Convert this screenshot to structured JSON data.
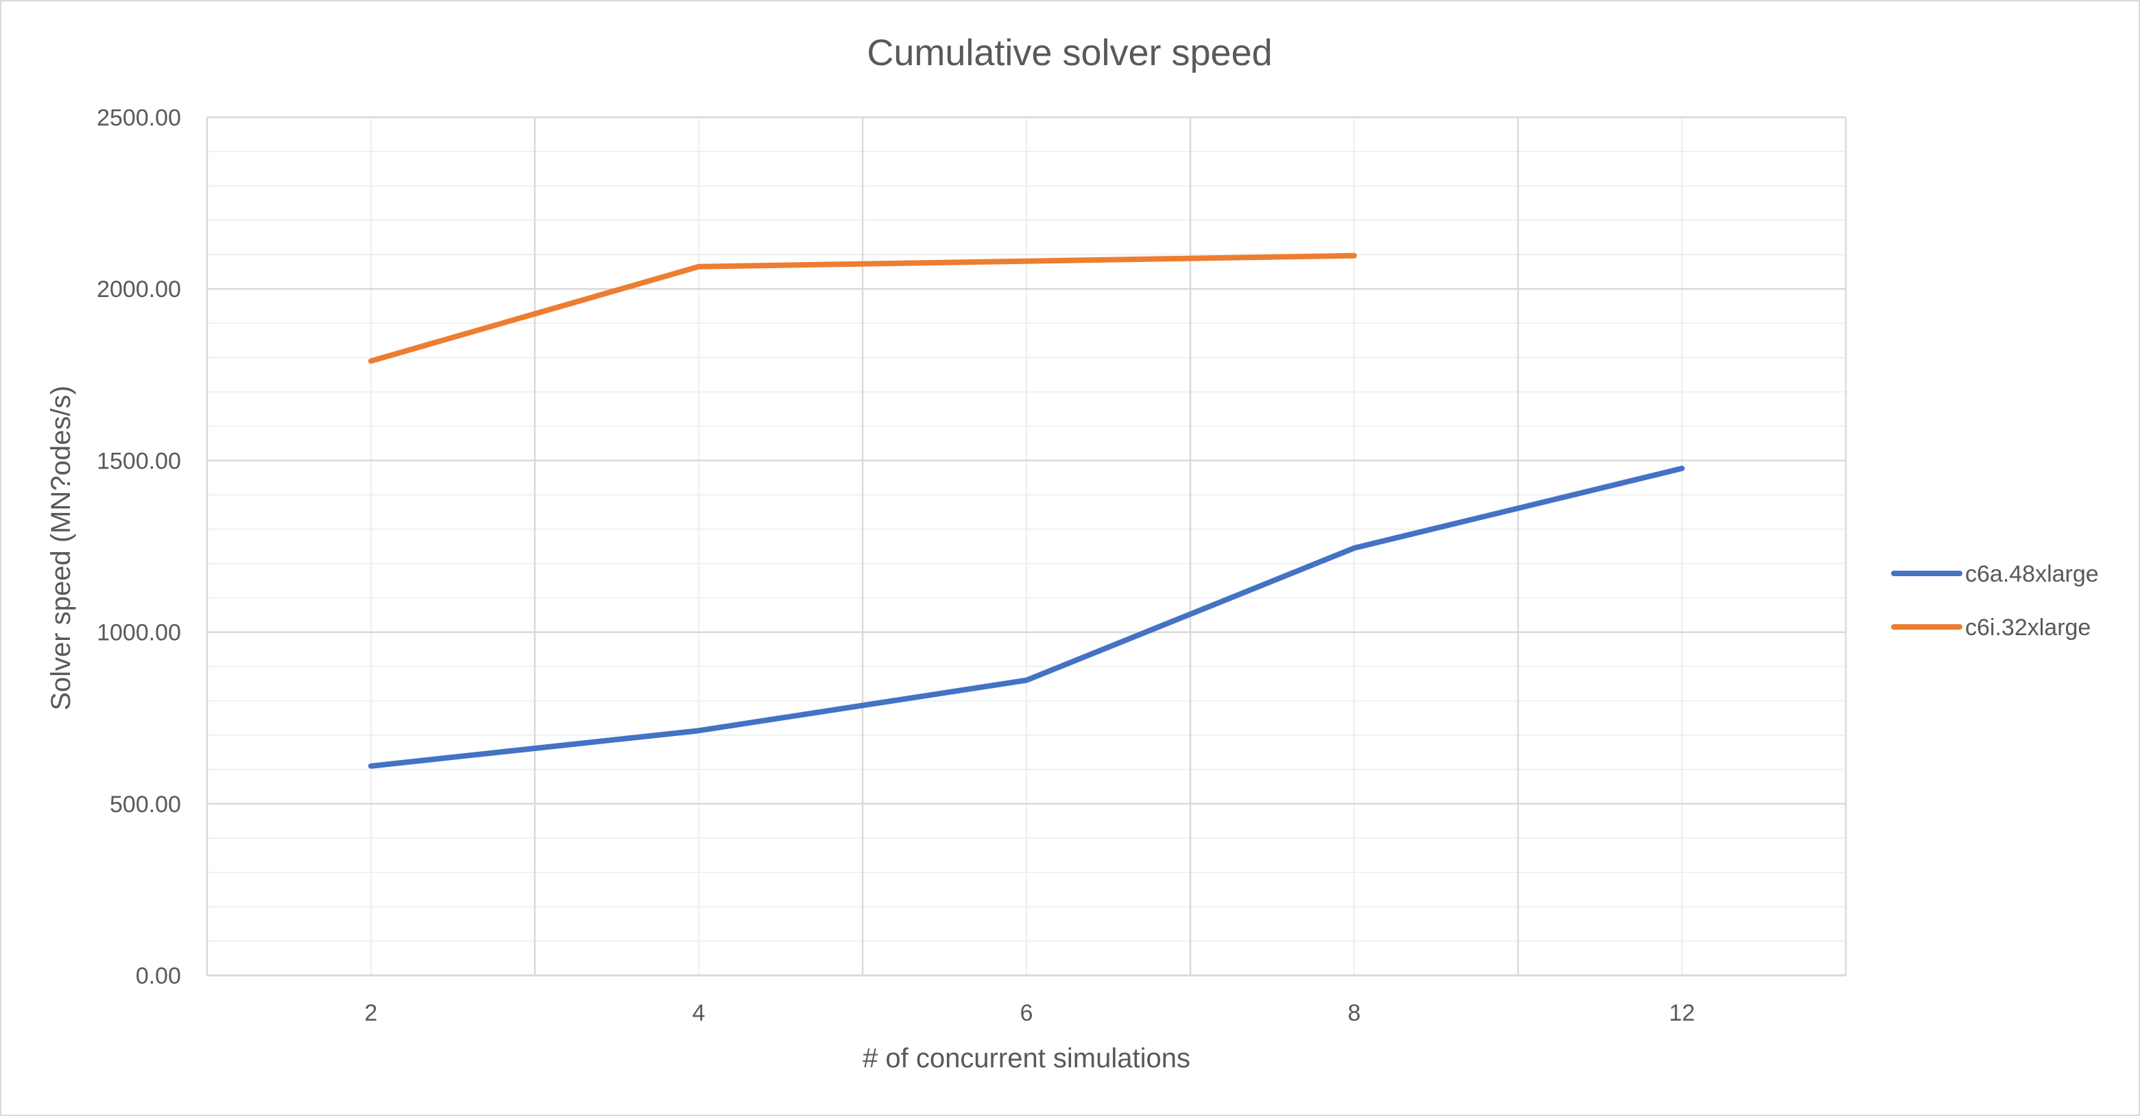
{
  "chart_data": {
    "type": "line",
    "title": "Cumulative solver speed",
    "xlabel": "# of concurrent simulations",
    "ylabel": "Solver speed (MN?odes/s)",
    "categories": [
      "2",
      "4",
      "6",
      "8",
      "12"
    ],
    "ylim": [
      0,
      2500
    ],
    "yticks": [
      "0.00",
      "500.00",
      "1000.00",
      "1500.00",
      "2000.00",
      "2500.00"
    ],
    "grid": "on",
    "legend_position": "right",
    "series": [
      {
        "name": "c6a.48xlarge",
        "color": "#4472c4",
        "values": [
          610,
          713,
          860,
          1245,
          1477
        ]
      },
      {
        "name": "c6i.32xlarge",
        "color": "#ed7d31",
        "values": [
          1790,
          2065,
          null,
          2097,
          null
        ]
      }
    ]
  }
}
